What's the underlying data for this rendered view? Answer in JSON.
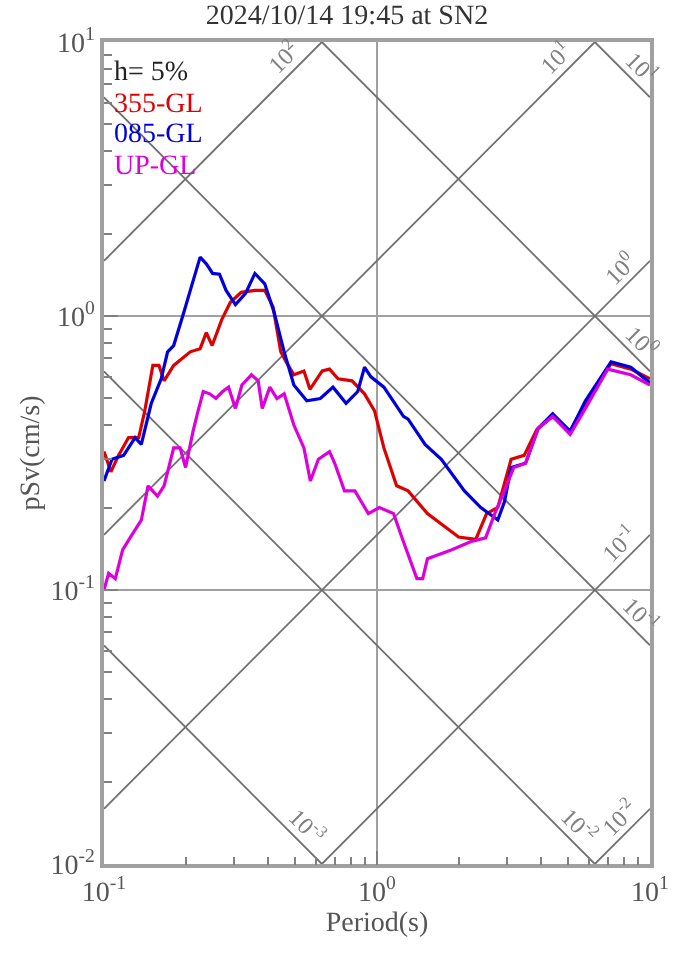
{
  "chart_data": {
    "type": "line",
    "title": "2024/10/14 19:45 at SN2",
    "xlabel": "Period(s)",
    "ylabel": "pSv(cm/s)",
    "log": "xy",
    "grid": true,
    "legend": "top left",
    "line_style": "solid",
    "marker": "none",
    "xlim": [
      0.1,
      10
    ],
    "ylim": [
      0.01,
      10
    ],
    "xticks": [
      {
        "value": 0.1,
        "label": "10$^{-1}$"
      },
      {
        "value": 0.2,
        "label": null
      },
      {
        "value": 0.3,
        "label": null
      },
      {
        "value": 0.4,
        "label": null
      },
      {
        "value": 0.5,
        "label": null
      },
      {
        "value": 0.6,
        "label": null
      },
      {
        "value": 0.7,
        "label": null
      },
      {
        "value": 0.8,
        "label": null
      },
      {
        "value": 0.9,
        "label": null
      },
      {
        "value": 1,
        "label": "10$^{0}$"
      },
      {
        "value": 2,
        "label": null
      },
      {
        "value": 3,
        "label": null
      },
      {
        "value": 4,
        "label": null
      },
      {
        "value": 5,
        "label": null
      },
      {
        "value": 6,
        "label": null
      },
      {
        "value": 7,
        "label": null
      },
      {
        "value": 8,
        "label": null
      },
      {
        "value": 9,
        "label": null
      },
      {
        "value": 10,
        "label": "10$^{1}$"
      }
    ],
    "yticks": [
      {
        "value": 0.01,
        "label": "10$^{-2}$"
      },
      {
        "value": 0.02,
        "label": null
      },
      {
        "value": 0.03,
        "label": null
      },
      {
        "value": 0.04,
        "label": null
      },
      {
        "value": 0.05,
        "label": null
      },
      {
        "value": 0.06,
        "label": null
      },
      {
        "value": 0.07,
        "label": null
      },
      {
        "value": 0.08,
        "label": null
      },
      {
        "value": 0.09,
        "label": null
      },
      {
        "value": 0.1,
        "label": "10$^{-1}$"
      },
      {
        "value": 0.2,
        "label": null
      },
      {
        "value": 0.3,
        "label": null
      },
      {
        "value": 0.4,
        "label": null
      },
      {
        "value": 0.5,
        "label": null
      },
      {
        "value": 0.6,
        "label": null
      },
      {
        "value": 0.7,
        "label": null
      },
      {
        "value": 0.8,
        "label": null
      },
      {
        "value": 0.9,
        "label": null
      },
      {
        "value": 1,
        "label": "10$^{0}$"
      },
      {
        "value": 2,
        "label": null
      },
      {
        "value": 3,
        "label": null
      },
      {
        "value": 4,
        "label": null
      },
      {
        "value": 5,
        "label": null
      },
      {
        "value": 6,
        "label": null
      },
      {
        "value": 7,
        "label": null
      },
      {
        "value": 8,
        "label": null
      },
      {
        "value": 9,
        "label": null
      },
      {
        "value": 10,
        "label": "10$^{1}$"
      }
    ],
    "series": [
      {
        "color": "#707070",
        "x": [
          6.28,
          10
        ],
        "values": [
          0.01,
          0.0159
        ]
      },
      {
        "color": "#707070",
        "x": [
          0.628,
          10
        ],
        "values": [
          0.01,
          0.159
        ]
      },
      {
        "color": "#707070",
        "x": [
          0.1,
          10
        ],
        "values": [
          0.0159,
          1.59
        ]
      },
      {
        "color": "#707070",
        "x": [
          0.1,
          6.28
        ],
        "values": [
          0.159,
          10
        ]
      },
      {
        "color": "#707070",
        "x": [
          0.1,
          0.628
        ],
        "values": [
          1.59,
          10
        ]
      },
      {
        "color": "#707070",
        "x": [
          6.28,
          10
        ],
        "values": [
          10,
          6.28
        ]
      },
      {
        "color": "#707070",
        "x": [
          0.628,
          10
        ],
        "values": [
          10,
          0.628
        ]
      },
      {
        "color": "#707070",
        "x": [
          0.1,
          10
        ],
        "values": [
          6.28,
          0.0628
        ]
      },
      {
        "color": "#707070",
        "x": [
          0.1,
          6.28
        ],
        "values": [
          0.628,
          0.01
        ]
      },
      {
        "color": "#707070",
        "x": [
          0.1,
          0.628
        ],
        "values": [
          0.0628,
          0.01
        ]
      },
      {
        "name": "355-GL",
        "color": "#dd0000",
        "x": [
          0.1,
          0.106,
          0.113,
          0.123,
          0.134,
          0.141,
          0.151,
          0.159,
          0.166,
          0.18,
          0.207,
          0.225,
          0.237,
          0.249,
          0.27,
          0.29,
          0.318,
          0.357,
          0.388,
          0.416,
          0.444,
          0.465,
          0.496,
          0.54,
          0.568,
          0.63,
          0.67,
          0.72,
          0.81,
          0.9,
          0.98,
          1.06,
          1.18,
          1.3,
          1.53,
          1.99,
          2.3,
          2.52,
          2.77,
          3.1,
          3.46,
          3.85,
          4.4,
          5.1,
          5.8,
          7.2,
          8.5,
          10
        ],
        "values": [
          0.32,
          0.27,
          0.31,
          0.36,
          0.36,
          0.45,
          0.66,
          0.66,
          0.58,
          0.66,
          0.74,
          0.76,
          0.87,
          0.78,
          0.97,
          1.12,
          1.22,
          1.24,
          1.24,
          1.08,
          0.74,
          0.68,
          0.61,
          0.63,
          0.54,
          0.63,
          0.64,
          0.59,
          0.58,
          0.52,
          0.45,
          0.33,
          0.24,
          0.23,
          0.19,
          0.156,
          0.153,
          0.19,
          0.2,
          0.3,
          0.31,
          0.385,
          0.43,
          0.38,
          0.48,
          0.67,
          0.64,
          0.59
        ]
      },
      {
        "name": "085-GL",
        "color": "#0000dd",
        "x": [
          0.1,
          0.107,
          0.118,
          0.13,
          0.137,
          0.149,
          0.162,
          0.171,
          0.18,
          0.196,
          0.209,
          0.225,
          0.237,
          0.25,
          0.265,
          0.28,
          0.303,
          0.33,
          0.357,
          0.388,
          0.42,
          0.457,
          0.496,
          0.553,
          0.62,
          0.69,
          0.77,
          0.85,
          0.9,
          0.95,
          1.06,
          1.25,
          1.3,
          1.5,
          1.72,
          2.09,
          2.4,
          2.77,
          2.93,
          3.1,
          3.5,
          3.9,
          4.4,
          5.1,
          5.8,
          7.2,
          8.5,
          10
        ],
        "values": [
          0.25,
          0.3,
          0.31,
          0.36,
          0.34,
          0.48,
          0.59,
          0.74,
          0.78,
          1.03,
          1.28,
          1.64,
          1.55,
          1.43,
          1.42,
          1.24,
          1.1,
          1.21,
          1.43,
          1.31,
          1.03,
          0.74,
          0.56,
          0.49,
          0.5,
          0.55,
          0.48,
          0.53,
          0.65,
          0.6,
          0.55,
          0.43,
          0.42,
          0.34,
          0.3,
          0.23,
          0.2,
          0.18,
          0.21,
          0.28,
          0.29,
          0.39,
          0.44,
          0.38,
          0.49,
          0.68,
          0.65,
          0.57
        ]
      },
      {
        "name": "UP-GL",
        "color": "#dd00dd",
        "x": [
          0.1,
          0.104,
          0.11,
          0.117,
          0.127,
          0.137,
          0.145,
          0.157,
          0.166,
          0.18,
          0.19,
          0.199,
          0.212,
          0.221,
          0.231,
          0.244,
          0.257,
          0.272,
          0.286,
          0.303,
          0.32,
          0.347,
          0.367,
          0.38,
          0.405,
          0.43,
          0.457,
          0.496,
          0.54,
          0.57,
          0.61,
          0.67,
          0.7,
          0.76,
          0.83,
          0.93,
          1.02,
          1.15,
          1.25,
          1.4,
          1.47,
          1.53,
          1.87,
          2.2,
          2.5,
          2.7,
          2.93,
          3.17,
          3.5,
          3.9,
          4.4,
          5.1,
          5.8,
          7.0,
          8.5,
          10
        ],
        "values": [
          0.1,
          0.115,
          0.11,
          0.14,
          0.16,
          0.18,
          0.24,
          0.22,
          0.24,
          0.33,
          0.33,
          0.28,
          0.38,
          0.45,
          0.53,
          0.52,
          0.5,
          0.53,
          0.55,
          0.46,
          0.56,
          0.61,
          0.58,
          0.46,
          0.55,
          0.5,
          0.52,
          0.4,
          0.33,
          0.25,
          0.3,
          0.32,
          0.29,
          0.23,
          0.23,
          0.19,
          0.2,
          0.19,
          0.15,
          0.11,
          0.11,
          0.13,
          0.14,
          0.15,
          0.155,
          0.19,
          0.23,
          0.28,
          0.29,
          0.39,
          0.43,
          0.37,
          0.46,
          0.64,
          0.61,
          0.56
        ]
      }
    ],
    "annotations": [
      "h= 5%",
      {
        "text": "10$^{2}$",
        "x": 0.5,
        "y": 7.96
      },
      {
        "text": "10$^{1}$",
        "x": 5.0,
        "y": 7.96
      },
      {
        "text": "10$^{1}$",
        "x": 8.5,
        "y": 7.39
      },
      {
        "text": "10$^{0}$",
        "x": 8.5,
        "y": 1.353
      },
      {
        "text": "10$^{0}$",
        "x": 8.5,
        "y": 0.739
      },
      {
        "text": "10$^{-1}$",
        "x": 8.5,
        "y": 0.1353
      },
      {
        "text": "10$^{-1}$",
        "x": 8.5,
        "y": 0.0739
      },
      {
        "text": "10$^{-2}$",
        "x": 8.5,
        "y": 0.01353
      },
      {
        "text": "10$^{-2}$",
        "x": 5.0,
        "y": 0.01257
      },
      {
        "text": "10$^{-3}$",
        "x": 0.5,
        "y": 0.01257
      }
    ]
  }
}
